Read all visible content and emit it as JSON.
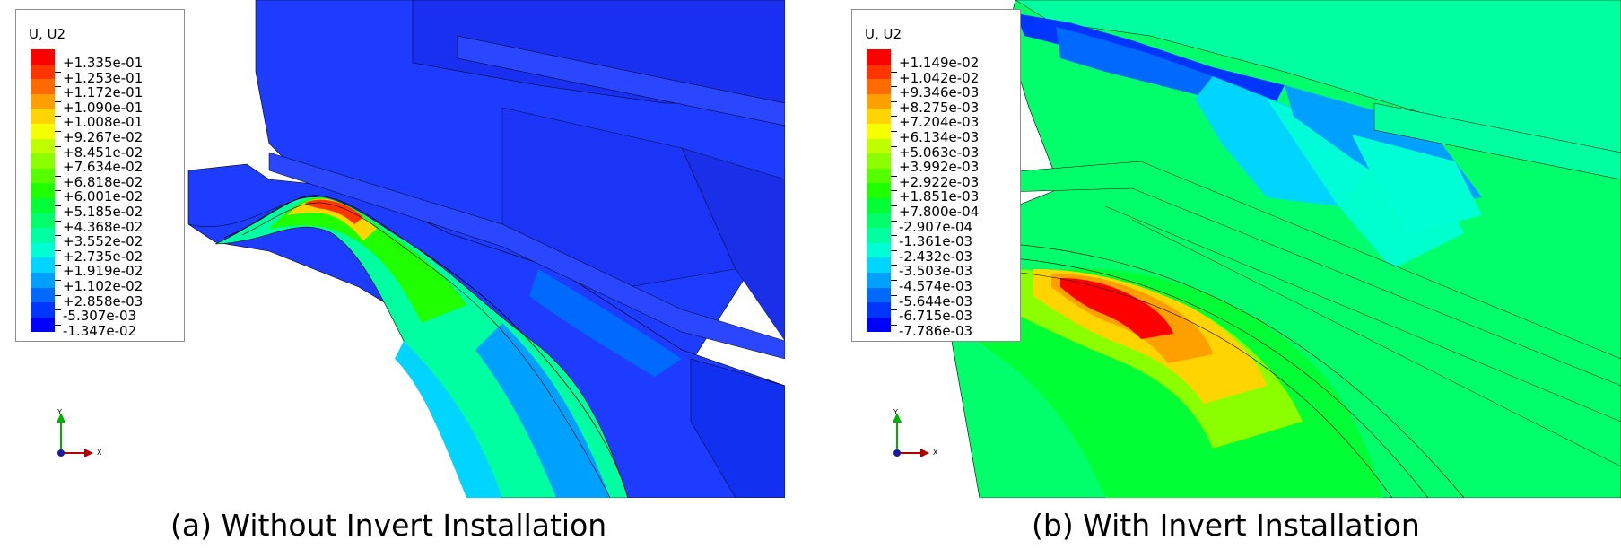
{
  "panels": [
    {
      "legend": {
        "title": "U, U2",
        "values": [
          "+1.335e-01",
          "+1.253e-01",
          "+1.172e-01",
          "+1.090e-01",
          "+1.008e-01",
          "+9.267e-02",
          "+8.451e-02",
          "+7.634e-02",
          "+6.818e-02",
          "+6.001e-02",
          "+5.185e-02",
          "+4.368e-02",
          "+3.552e-02",
          "+2.735e-02",
          "+1.919e-02",
          "+1.102e-02",
          "+2.858e-03",
          "-5.307e-03",
          "-1.347e-02"
        ]
      },
      "triad": {
        "y": "Y",
        "x": "X"
      },
      "caption": "(a) Without Invert Installation"
    },
    {
      "legend": {
        "title": "U, U2",
        "values": [
          "+1.149e-02",
          "+1.042e-02",
          "+9.346e-03",
          "+8.275e-03",
          "+7.204e-03",
          "+6.134e-03",
          "+5.063e-03",
          "+3.992e-03",
          "+2.922e-03",
          "+1.851e-03",
          "+7.800e-04",
          "-2.907e-04",
          "-1.361e-03",
          "-2.432e-03",
          "-3.503e-03",
          "-4.574e-03",
          "-5.644e-03",
          "-6.715e-03",
          "-7.786e-03"
        ]
      },
      "triad": {
        "y": "Y",
        "x": "X"
      },
      "caption": "(b) With Invert Installation"
    }
  ],
  "colormap": [
    "#ff0000",
    "#ff3500",
    "#ff6a00",
    "#ff9f00",
    "#ffd400",
    "#f5ff00",
    "#c0ff00",
    "#8bff00",
    "#55ff00",
    "#20ff00",
    "#00ff35",
    "#00ff6a",
    "#00ffa0",
    "#00ffd5",
    "#00d5ff",
    "#00a0ff",
    "#006aff",
    "#0035ff",
    "#0000ff"
  ]
}
